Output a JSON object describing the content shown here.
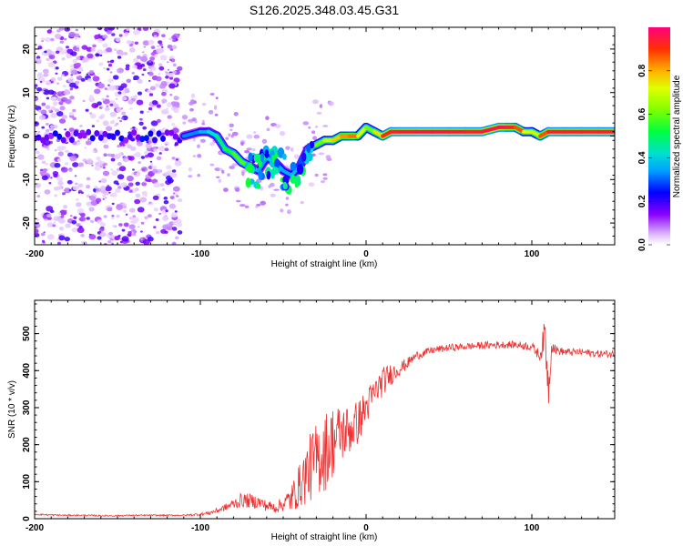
{
  "chart_data": [
    {
      "type": "heatmap",
      "title": "S126.2025.348.03.45.G31",
      "xlabel": "Height of straight line (km)",
      "ylabel": "Frequency (Hz)",
      "xlim": [
        -200,
        150
      ],
      "ylim": [
        -25,
        25
      ],
      "xticks": [
        -200,
        -100,
        0,
        100
      ],
      "xtick_labels": [
        "-200",
        "-100",
        "0",
        "100"
      ],
      "yticks": [
        -20,
        -10,
        0,
        10,
        20
      ],
      "ytick_labels": [
        "-20",
        "-10",
        "0",
        "10",
        "20"
      ],
      "colorbar": {
        "label": "Normalized spectral amplitude",
        "range": [
          0.0,
          1.0
        ],
        "ticks": [
          0.0,
          0.2,
          0.4,
          0.6,
          0.8
        ],
        "tick_labels": [
          "0.0",
          "0.2",
          "0.4",
          "0.6",
          "0.8"
        ]
      },
      "ridge": {
        "x": [
          -110,
          -100,
          -95,
          -90,
          -85,
          -80,
          -75,
          -70,
          -65,
          -60,
          -55,
          -50,
          -45,
          -40,
          -35,
          -30,
          -25,
          -20,
          -15,
          -10,
          -5,
          0,
          5,
          10,
          15,
          20,
          30,
          40,
          50,
          60,
          70,
          80,
          85,
          90,
          95,
          100,
          105,
          110,
          120,
          130,
          140,
          150
        ],
        "y": [
          0,
          1,
          1,
          0,
          -3,
          -4,
          -6,
          -7,
          -8,
          -5,
          -6,
          -8,
          -9,
          -7,
          -3,
          -2,
          -1,
          -1,
          0,
          0,
          0,
          2,
          1,
          0,
          1,
          1,
          1,
          1,
          1,
          1,
          1,
          2,
          2,
          2,
          1,
          1,
          0,
          1,
          1,
          1,
          1,
          1
        ],
        "amplitude": [
          0.3,
          0.35,
          0.4,
          0.45,
          0.5,
          0.55,
          0.6,
          0.55,
          0.3,
          0.4,
          0.4,
          0.35,
          0.35,
          0.4,
          0.45,
          0.55,
          0.65,
          0.75,
          0.8,
          0.85,
          0.85,
          0.6,
          0.6,
          0.9,
          0.95,
          0.95,
          0.97,
          0.97,
          0.97,
          0.95,
          0.95,
          0.97,
          0.95,
          0.9,
          0.85,
          0.6,
          0.8,
          0.95,
          0.95,
          0.95,
          0.95,
          0.95
        ]
      }
    },
    {
      "type": "line",
      "xlabel": "Height of straight line (km)",
      "ylabel": "SNR (10 * v/v)",
      "xlim": [
        -200,
        150
      ],
      "ylim": [
        0,
        590
      ],
      "xticks": [
        -200,
        -100,
        0,
        100
      ],
      "xtick_labels": [
        "-200",
        "-100",
        "0",
        "100"
      ],
      "yticks": [
        0,
        100,
        200,
        300,
        400,
        500
      ],
      "ytick_labels": [
        "0",
        "100",
        "200",
        "300",
        "400",
        "500"
      ],
      "series": [
        {
          "name": "SNR",
          "color": "#ee3030",
          "x": [
            -200,
            -190,
            -180,
            -170,
            -160,
            -150,
            -140,
            -130,
            -120,
            -110,
            -100,
            -95,
            -90,
            -85,
            -80,
            -75,
            -70,
            -65,
            -60,
            -55,
            -50,
            -45,
            -40,
            -35,
            -30,
            -25,
            -20,
            -15,
            -10,
            -5,
            0,
            5,
            10,
            15,
            20,
            25,
            30,
            40,
            50,
            60,
            70,
            80,
            90,
            100,
            105,
            108,
            110,
            112,
            115,
            120,
            130,
            140,
            150
          ],
          "y": [
            12,
            10,
            9,
            9,
            8,
            8,
            9,
            9,
            9,
            9,
            12,
            15,
            22,
            30,
            40,
            50,
            48,
            45,
            35,
            30,
            40,
            55,
            90,
            130,
            160,
            180,
            210,
            230,
            240,
            260,
            300,
            340,
            370,
            390,
            405,
            420,
            440,
            455,
            462,
            465,
            468,
            470,
            470,
            465,
            440,
            500,
            350,
            470,
            455,
            450,
            450,
            445,
            445
          ],
          "noise": [
            2,
            2,
            2,
            2,
            2,
            2,
            2,
            2,
            2,
            2,
            4,
            5,
            8,
            10,
            15,
            20,
            20,
            18,
            15,
            15,
            20,
            40,
            60,
            90,
            100,
            110,
            100,
            80,
            70,
            60,
            50,
            40,
            40,
            30,
            20,
            15,
            12,
            10,
            10,
            10,
            10,
            10,
            10,
            12,
            15,
            50,
            60,
            20,
            12,
            10,
            10,
            10,
            10
          ]
        }
      ]
    }
  ]
}
